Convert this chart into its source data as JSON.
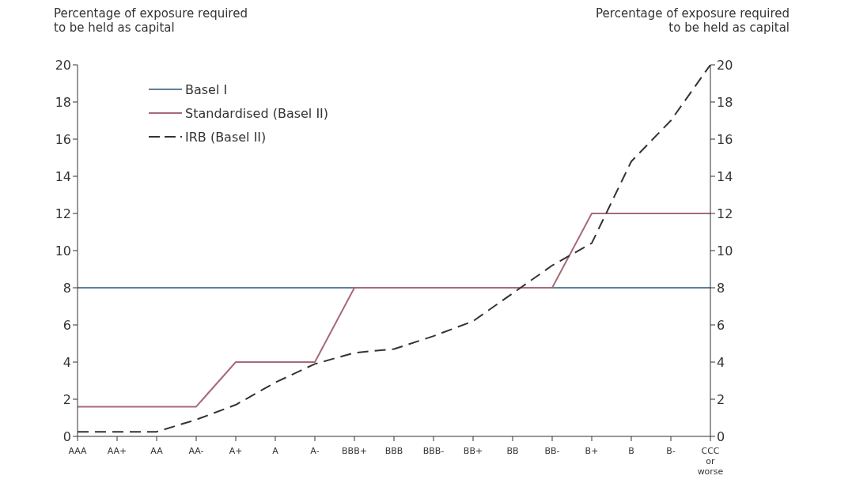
{
  "chart_data": {
    "type": "line",
    "ylabel": "Percentage of exposure required to be held as capital",
    "y2label": "Percentage of exposure required to be held as capital",
    "categories": [
      "AAA",
      "AA+",
      "AA",
      "AA-",
      "A+",
      "A",
      "A-",
      "BBB+",
      "BBB",
      "BBB-",
      "BB+",
      "BB",
      "BB-",
      "B+",
      "B",
      "B-",
      "CCC or worse"
    ],
    "series": [
      {
        "name": "Basel I",
        "color": "#5f7f9c",
        "line_style": "solid",
        "values": [
          8,
          8,
          8,
          8,
          8,
          8,
          8,
          8,
          8,
          8,
          8,
          8,
          8,
          8,
          8,
          8,
          8
        ]
      },
      {
        "name": "Standardised (Basel II)",
        "color": "#a86a78",
        "line_style": "solid",
        "values": [
          1.6,
          1.6,
          1.6,
          1.6,
          4,
          4,
          4,
          8,
          8,
          8,
          8,
          8,
          8,
          12,
          12,
          12,
          12
        ]
      },
      {
        "name": "IRB (Basel II)",
        "color": "#333333",
        "line_style": "dashed",
        "values": [
          0.25,
          0.25,
          0.25,
          0.9,
          1.7,
          2.9,
          3.9,
          4.5,
          4.7,
          5.4,
          6.2,
          7.7,
          9.2,
          10.4,
          14.8,
          17,
          20
        ]
      }
    ],
    "ylim": [
      0,
      20
    ],
    "yticks": [
      0,
      2,
      4,
      6,
      8,
      10,
      12,
      14,
      16,
      18,
      20
    ],
    "y2lim": [
      0,
      20
    ],
    "y2ticks": [
      0,
      2,
      4,
      6,
      8,
      10,
      12,
      14,
      16,
      18,
      20
    ],
    "grid": false,
    "legend": "top left",
    "marker": "none"
  }
}
